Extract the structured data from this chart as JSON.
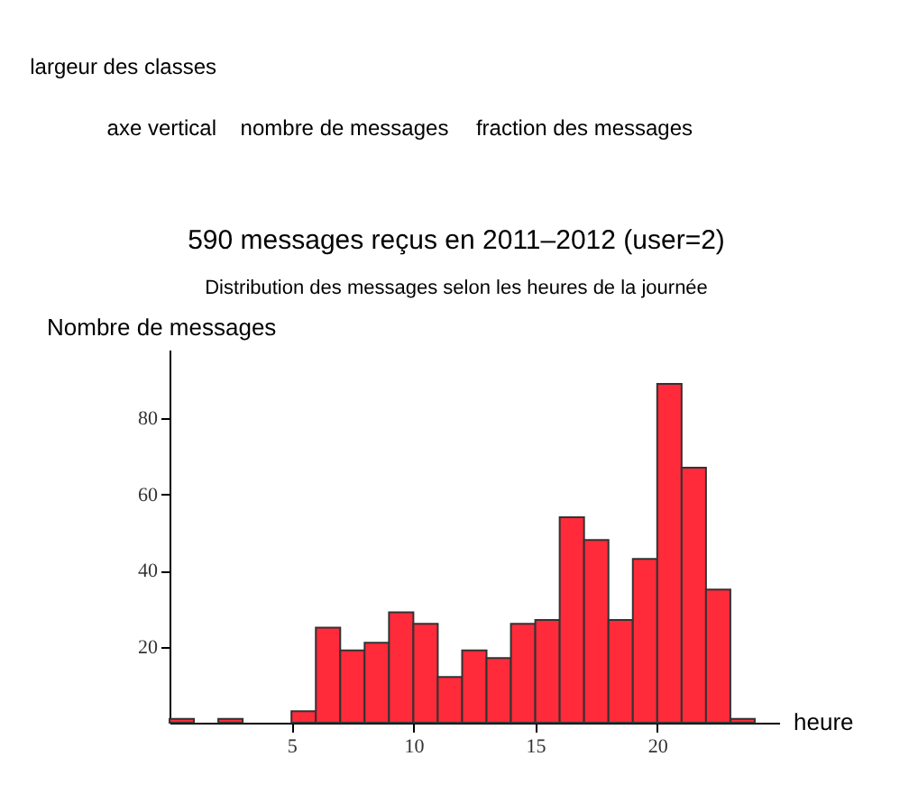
{
  "chart_data": {
    "type": "histogram",
    "title": "590 messages reçus en 2011–2012 (user=2)",
    "subtitle": "Distribution des messages selon les heures de la journée",
    "xlabel": "heure",
    "ylabel": "Nombre de messages",
    "bins": [
      0,
      1,
      2,
      3,
      4,
      5,
      6,
      7,
      8,
      9,
      10,
      11,
      12,
      13,
      14,
      15,
      16,
      17,
      18,
      19,
      20,
      21,
      22,
      23,
      24
    ],
    "values": [
      1,
      0,
      1,
      0,
      0,
      3,
      25,
      19,
      21,
      29,
      26,
      12,
      19,
      17,
      26,
      27,
      54,
      48,
      27,
      43,
      89,
      67,
      35,
      1
    ],
    "color": "#ff2a3a",
    "xlim": [
      0,
      25
    ],
    "xticks": [
      5,
      10,
      15,
      20
    ],
    "ylim": [
      0,
      98
    ],
    "yticks": [
      20,
      40,
      60,
      80
    ],
    "grid": false,
    "annotations": [
      "largeur des classes",
      "axe vertical",
      "nombre de messages",
      "fraction des messages"
    ]
  }
}
